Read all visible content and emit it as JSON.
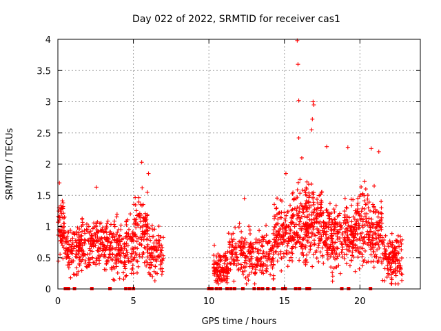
{
  "chart_data": {
    "type": "scatter",
    "title": "Day 022 of 2022, SRMTID for receiver cas1",
    "xlabel": "GPS time / hours",
    "ylabel": "SRMTID / TECUs",
    "xlim": [
      0,
      24
    ],
    "ylim": [
      0,
      4
    ],
    "xticks": [
      0,
      5,
      10,
      15,
      20
    ],
    "yticks": [
      0,
      0.5,
      1,
      1.5,
      2,
      2.5,
      3,
      3.5,
      4
    ],
    "xtick_labels": [
      "0",
      "5",
      "10",
      "15",
      "20"
    ],
    "ytick_labels": [
      "0",
      "0.5",
      "1",
      "1.5",
      "2",
      "2.5",
      "3",
      "3.5",
      "4"
    ],
    "grid": true,
    "marker": "+",
    "color": "#ff0000",
    "series": [
      {
        "name": "SRMTID",
        "segments": [
          {
            "x_range": [
              0.0,
              0.45
            ],
            "mean": 1.0,
            "spread": 0.35,
            "count": 60
          },
          {
            "x_range": [
              0.45,
              1.5
            ],
            "mean": 0.65,
            "spread": 0.3,
            "count": 110
          },
          {
            "x_range": [
              1.5,
              3.5
            ],
            "mean": 0.7,
            "spread": 0.3,
            "count": 200
          },
          {
            "x_range": [
              3.5,
              5.0
            ],
            "mean": 0.65,
            "spread": 0.35,
            "count": 150
          },
          {
            "x_range": [
              5.0,
              6.0
            ],
            "mean": 0.9,
            "spread": 0.45,
            "count": 110
          },
          {
            "x_range": [
              6.0,
              7.0
            ],
            "mean": 0.6,
            "spread": 0.3,
            "count": 90
          },
          {
            "x_range": [
              10.3,
              11.3
            ],
            "mean": 0.35,
            "spread": 0.2,
            "count": 110
          },
          {
            "x_range": [
              11.3,
              12.3
            ],
            "mean": 0.6,
            "spread": 0.3,
            "count": 80
          },
          {
            "x_range": [
              12.3,
              14.3
            ],
            "mean": 0.5,
            "spread": 0.3,
            "count": 170
          },
          {
            "x_range": [
              14.3,
              15.5
            ],
            "mean": 0.9,
            "spread": 0.35,
            "count": 130
          },
          {
            "x_range": [
              15.5,
              17.5
            ],
            "mean": 1.05,
            "spread": 0.45,
            "count": 260
          },
          {
            "x_range": [
              17.5,
              19.5
            ],
            "mean": 0.85,
            "spread": 0.4,
            "count": 230
          },
          {
            "x_range": [
              19.5,
              21.5
            ],
            "mean": 0.95,
            "spread": 0.45,
            "count": 230
          },
          {
            "x_range": [
              21.5,
              22.8
            ],
            "mean": 0.5,
            "spread": 0.3,
            "count": 140
          }
        ],
        "outliers": [
          {
            "x": 15.85,
            "y": 3.98
          },
          {
            "x": 15.9,
            "y": 3.6
          },
          {
            "x": 15.95,
            "y": 3.02
          },
          {
            "x": 16.9,
            "y": 3.0
          },
          {
            "x": 16.95,
            "y": 2.95
          },
          {
            "x": 16.85,
            "y": 2.72
          },
          {
            "x": 16.8,
            "y": 2.55
          },
          {
            "x": 15.95,
            "y": 2.42
          },
          {
            "x": 17.8,
            "y": 2.28
          },
          {
            "x": 19.2,
            "y": 2.27
          },
          {
            "x": 20.75,
            "y": 2.25
          },
          {
            "x": 21.25,
            "y": 2.2
          },
          {
            "x": 16.15,
            "y": 2.1
          },
          {
            "x": 5.55,
            "y": 2.03
          },
          {
            "x": 15.1,
            "y": 1.85
          },
          {
            "x": 6.0,
            "y": 1.85
          },
          {
            "x": 0.1,
            "y": 1.7
          },
          {
            "x": 2.55,
            "y": 1.63
          },
          {
            "x": 12.35,
            "y": 1.45
          }
        ],
        "zero_markers": [
          0.5,
          0.7,
          1.1,
          2.25,
          3.45,
          4.5,
          4.75,
          5.0,
          10.0,
          10.2,
          10.5,
          10.75,
          11.2,
          11.45,
          11.7,
          12.25,
          13.0,
          13.3,
          13.55,
          13.9,
          14.3,
          14.9,
          15.05,
          15.75,
          16.0,
          16.5,
          16.65,
          18.8,
          19.25,
          20.7
        ]
      }
    ]
  }
}
